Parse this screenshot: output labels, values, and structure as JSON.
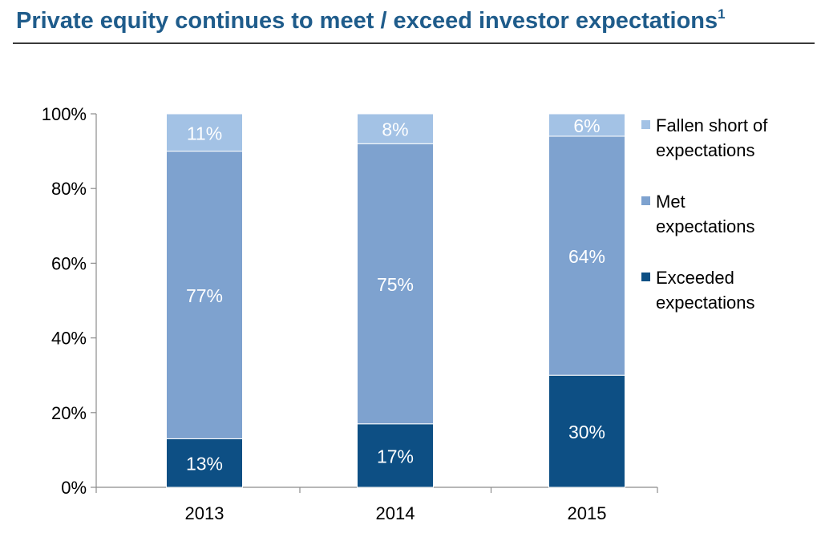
{
  "header": {
    "title": "Private equity continues to meet / exceed investor expectations",
    "footnote_marker": "1"
  },
  "chart_data": {
    "type": "bar",
    "stacked": true,
    "categories": [
      "2013",
      "2014",
      "2015"
    ],
    "ylim": [
      0,
      100
    ],
    "yticks": [
      "0%",
      "20%",
      "40%",
      "60%",
      "80%",
      "100%"
    ],
    "series": [
      {
        "name": "Exceeded expectations",
        "values": [
          13,
          17,
          30
        ],
        "labels": [
          "13%",
          "17%",
          "30%"
        ],
        "color": "#0d4f84"
      },
      {
        "name": "Met expectations",
        "values": [
          77,
          75,
          64
        ],
        "labels": [
          "77%",
          "75%",
          "64%"
        ],
        "color": "#7ea2cf"
      },
      {
        "name": "Fallen short of expectations",
        "values": [
          11,
          8,
          6
        ],
        "labels": [
          "11%",
          "8%",
          "6%"
        ],
        "color": "#a3c2e5"
      }
    ],
    "legend": {
      "position": "right",
      "order": [
        2,
        1,
        0
      ],
      "lines": [
        [
          "Fallen short of",
          "expectations"
        ],
        [
          "Met",
          "expectations"
        ],
        [
          "Exceeded",
          "expectations"
        ]
      ]
    }
  }
}
